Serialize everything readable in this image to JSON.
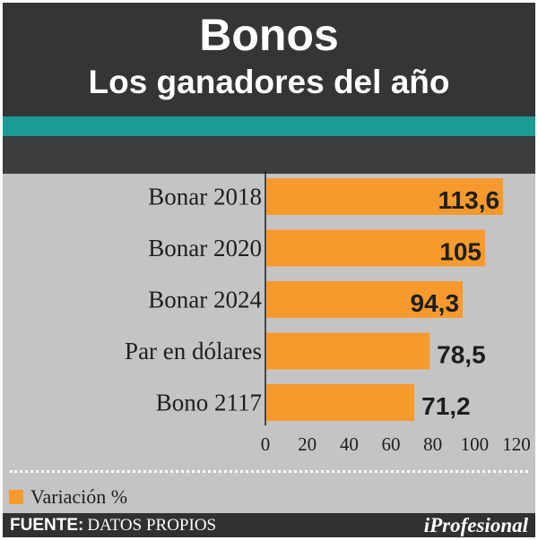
{
  "header": {
    "title": "Bonos",
    "subtitle": "Los ganadores del año"
  },
  "legend": {
    "label": "Variación %"
  },
  "footer": {
    "source_label": "FUENTE:",
    "source_value": "DATOS PROPIOS",
    "brand": "iProfesional"
  },
  "colors": {
    "bar": "#f79a2e",
    "accent": "#1a9b95",
    "header_bg": "#333536",
    "panel_bg": "#c4c4c4"
  },
  "chart_data": {
    "type": "bar",
    "orientation": "horizontal",
    "title": "Bonos",
    "subtitle": "Los ganadores del año",
    "categories": [
      "Bonar 2018",
      "Bonar 2020",
      "Bonar 2024",
      "Par en dólares",
      "Bono 2117"
    ],
    "series": [
      {
        "name": "Variación %",
        "values": [
          113.6,
          105,
          94.3,
          78.5,
          71.2
        ]
      }
    ],
    "data_labels": [
      "113,6",
      "105",
      "94,3",
      "78,5",
      "71,2"
    ],
    "xlim": [
      0,
      120
    ],
    "xticks": [
      0,
      20,
      40,
      60,
      80,
      100,
      120
    ],
    "grid": false,
    "legend_position": "bottom-left"
  }
}
